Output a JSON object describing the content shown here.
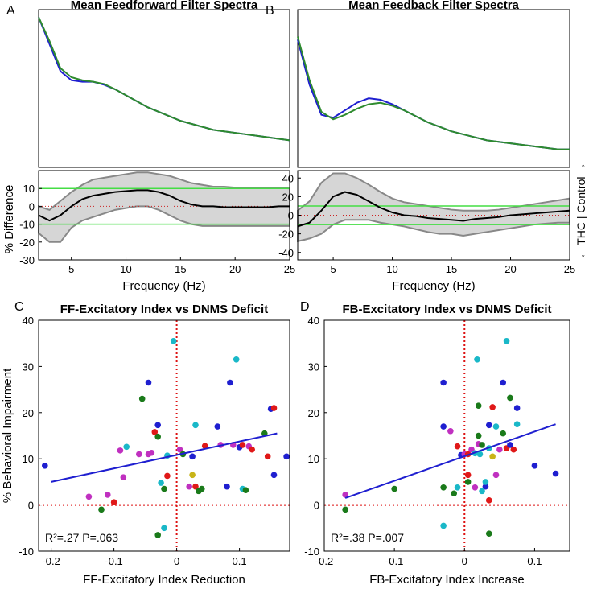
{
  "chart_data": [
    {
      "panel": "A",
      "type": "line",
      "title": "Mean Feedforward Filter Spectra",
      "series_colors": {
        "THC": "#2e8b2e",
        "Control": "#1f1fd0"
      },
      "top": {
        "x": [
          2,
          3,
          4,
          5,
          6,
          7,
          8,
          9,
          10,
          11,
          12,
          13,
          14,
          15,
          16,
          17,
          18,
          19,
          20,
          21,
          22,
          23,
          24,
          25
        ],
        "blue": [
          1.0,
          0.82,
          0.64,
          0.58,
          0.57,
          0.57,
          0.55,
          0.52,
          0.48,
          0.44,
          0.4,
          0.37,
          0.34,
          0.31,
          0.29,
          0.27,
          0.25,
          0.24,
          0.23,
          0.22,
          0.21,
          0.2,
          0.19,
          0.18
        ],
        "green": [
          1.0,
          0.84,
          0.66,
          0.6,
          0.58,
          0.57,
          0.555,
          0.52,
          0.48,
          0.44,
          0.4,
          0.37,
          0.34,
          0.31,
          0.29,
          0.27,
          0.25,
          0.24,
          0.23,
          0.22,
          0.21,
          0.2,
          0.19,
          0.18
        ]
      },
      "bottom": {
        "ylabel": "% Difference",
        "xlabel": "Frequency (Hz)",
        "xlim": [
          2,
          25
        ],
        "ylim": [
          -30,
          20
        ],
        "xticks": [
          "5",
          "10",
          "15",
          "20",
          "25"
        ],
        "yticks": [
          "-30",
          "-20",
          "-10",
          "0",
          "10"
        ],
        "threshold": 10,
        "x": [
          2,
          3,
          4,
          5,
          6,
          7,
          8,
          9,
          10,
          11,
          12,
          13,
          14,
          15,
          16,
          17,
          18,
          19,
          20,
          21,
          22,
          23,
          24,
          25
        ],
        "mean": [
          -5,
          -8,
          -5,
          0,
          4,
          6,
          7,
          8,
          8.5,
          9,
          9,
          8,
          6,
          3,
          1,
          0,
          0,
          -0.5,
          -0.5,
          -0.5,
          -0.5,
          -0.5,
          0,
          0
        ],
        "upper": [
          0,
          -2,
          3,
          8,
          12,
          15,
          16,
          17,
          18,
          19,
          19,
          18,
          17,
          15,
          13,
          12,
          11,
          11,
          10.5,
          10.5,
          10.5,
          10.5,
          10.5,
          10
        ],
        "lower": [
          -15,
          -20,
          -20,
          -12,
          -8,
          -6,
          -4,
          -2,
          -1,
          0,
          0,
          -2,
          -5,
          -8,
          -10,
          -11,
          -11,
          -11,
          -11,
          -11,
          -11,
          -11,
          -11,
          -11
        ]
      }
    },
    {
      "panel": "B",
      "type": "line",
      "title": "Mean Feedback Filter Spectra",
      "top": {
        "x": [
          2,
          3,
          4,
          5,
          6,
          7,
          8,
          9,
          10,
          11,
          12,
          13,
          14,
          15,
          16,
          17,
          18,
          19,
          20,
          21,
          22,
          23,
          24,
          25
        ],
        "blue": [
          0.85,
          0.55,
          0.35,
          0.33,
          0.38,
          0.43,
          0.46,
          0.45,
          0.42,
          0.38,
          0.34,
          0.3,
          0.27,
          0.24,
          0.22,
          0.2,
          0.18,
          0.17,
          0.16,
          0.15,
          0.14,
          0.13,
          0.12,
          0.12
        ],
        "green": [
          0.87,
          0.58,
          0.37,
          0.32,
          0.35,
          0.39,
          0.42,
          0.43,
          0.41,
          0.38,
          0.34,
          0.3,
          0.27,
          0.24,
          0.22,
          0.2,
          0.18,
          0.17,
          0.16,
          0.15,
          0.14,
          0.13,
          0.12,
          0.12
        ]
      },
      "bottom": {
        "xlabel": "Frequency (Hz)",
        "xlim": [
          2,
          25
        ],
        "ylim": [
          -48,
          48
        ],
        "xticks": [
          "5",
          "10",
          "15",
          "20",
          "25"
        ],
        "yticks": [
          "-40",
          "-20",
          "0",
          "20",
          "40"
        ],
        "threshold": 10,
        "x": [
          2,
          3,
          4,
          5,
          6,
          7,
          8,
          9,
          10,
          11,
          12,
          13,
          14,
          15,
          16,
          17,
          18,
          19,
          20,
          21,
          22,
          23,
          24,
          25
        ],
        "mean": [
          -12,
          -8,
          5,
          20,
          25,
          22,
          15,
          8,
          3,
          0,
          -1,
          -3,
          -4,
          -5,
          -6,
          -4,
          -3,
          -2,
          0,
          1,
          2,
          3,
          4,
          5
        ],
        "upper": [
          5,
          15,
          35,
          45,
          45,
          40,
          33,
          25,
          18,
          14,
          12,
          10,
          8,
          6,
          5,
          5,
          5,
          6,
          8,
          10,
          12,
          14,
          16,
          18
        ],
        "lower": [
          -28,
          -25,
          -20,
          -10,
          -5,
          -5,
          -5,
          -8,
          -10,
          -12,
          -15,
          -18,
          -20,
          -20,
          -22,
          -20,
          -18,
          -16,
          -14,
          -12,
          -10,
          -9,
          -8,
          -8
        ]
      },
      "side_label": "← THC  |  Control →"
    },
    {
      "panel": "C",
      "type": "scatter",
      "title": "FF-Excitatory Index vs DNMS Deficit",
      "xlabel": "FF-Excitatory Index Reduction",
      "ylabel": "% Behavioral Impairment",
      "xlim": [
        -0.22,
        0.18
      ],
      "ylim": [
        -10,
        40
      ],
      "xticks": [
        "-0.2",
        "-0.1",
        "0",
        "0.1"
      ],
      "yticks": [
        "-10",
        "0",
        "10",
        "20",
        "30",
        "40"
      ],
      "stats": "R²=.27  P=.063",
      "fit": {
        "x": [
          -0.2,
          0.16
        ],
        "y": [
          5,
          15.5
        ]
      },
      "points": [
        [
          -0.21,
          8.5,
          "#1f1fd0"
        ],
        [
          -0.14,
          1.8,
          "#c030c0"
        ],
        [
          -0.12,
          -1,
          "#1a7a1a"
        ],
        [
          -0.11,
          2.2,
          "#c030c0"
        ],
        [
          -0.1,
          0.6,
          "#e01818"
        ],
        [
          -0.09,
          11.8,
          "#c030c0"
        ],
        [
          -0.085,
          6,
          "#c030c0"
        ],
        [
          -0.08,
          12.6,
          "#1ab8c8"
        ],
        [
          -0.06,
          11,
          "#c030c0"
        ],
        [
          -0.055,
          23,
          "#1a7a1a"
        ],
        [
          -0.045,
          26.5,
          "#1f1fd0"
        ],
        [
          -0.045,
          11,
          "#c030c0"
        ],
        [
          -0.04,
          11.3,
          "#c030c0"
        ],
        [
          -0.035,
          15.8,
          "#e01818"
        ],
        [
          -0.03,
          14.8,
          "#1a7a1a"
        ],
        [
          -0.03,
          17.3,
          "#1f1fd0"
        ],
        [
          -0.025,
          4.8,
          "#1ab8c8"
        ],
        [
          -0.02,
          3.5,
          "#1a7a1a"
        ],
        [
          -0.015,
          6.3,
          "#e01818"
        ],
        [
          -0.015,
          10.7,
          "#1ab8c8"
        ],
        [
          -0.005,
          35.5,
          "#1ab8c8"
        ],
        [
          0.005,
          12,
          "#c030c0"
        ],
        [
          0.01,
          11,
          "#1a7a1a"
        ],
        [
          0.02,
          4,
          "#c030c0"
        ],
        [
          0.025,
          6.5,
          "#c8b418"
        ],
        [
          0.025,
          10.5,
          "#1f1fd0"
        ],
        [
          0.03,
          4,
          "#e01818"
        ],
        [
          0.03,
          17.3,
          "#1ab8c8"
        ],
        [
          0.035,
          3,
          "#1a7a1a"
        ],
        [
          0.04,
          3.5,
          "#1a7a1a"
        ],
        [
          0.045,
          12.8,
          "#e01818"
        ],
        [
          0.065,
          17,
          "#1f1fd0"
        ],
        [
          0.07,
          13,
          "#c030c0"
        ],
        [
          0.08,
          4,
          "#1f1fd0"
        ],
        [
          0.085,
          26.5,
          "#1f1fd0"
        ],
        [
          0.09,
          13,
          "#c030c0"
        ],
        [
          0.095,
          31.5,
          "#1ab8c8"
        ],
        [
          0.1,
          12.5,
          "#1f1fd0"
        ],
        [
          0.105,
          3.5,
          "#1ab8c8"
        ],
        [
          0.105,
          13,
          "#e01818"
        ],
        [
          0.11,
          3.2,
          "#1a7a1a"
        ],
        [
          0.115,
          12.7,
          "#c030c0"
        ],
        [
          0.12,
          12,
          "#e01818"
        ],
        [
          0.14,
          15.5,
          "#1a7a1a"
        ],
        [
          0.15,
          20.8,
          "#1f1fd0"
        ],
        [
          0.155,
          21,
          "#e01818"
        ],
        [
          0.145,
          10.5,
          "#e01818"
        ],
        [
          0.155,
          6.5,
          "#1f1fd0"
        ],
        [
          0.175,
          10.5,
          "#1f1fd0"
        ],
        [
          -0.03,
          -6.5,
          "#1a7a1a"
        ],
        [
          -0.02,
          -5,
          "#1ab8c8"
        ]
      ]
    },
    {
      "panel": "D",
      "type": "scatter",
      "title": "FB-Excitatory Index vs DNMS Deficit",
      "xlabel": "FB-Excitatory Index Increase",
      "xlim": [
        -0.2,
        0.15
      ],
      "ylim": [
        -10,
        40
      ],
      "xticks": [
        "-0.2",
        "-0.1",
        "0",
        "0.1"
      ],
      "yticks": [
        "-10",
        "0",
        "10",
        "20",
        "30",
        "40"
      ],
      "stats": "R²=.38  P=.007",
      "fit": {
        "x": [
          -0.17,
          0.13
        ],
        "y": [
          1.5,
          17.5
        ]
      },
      "points": [
        [
          -0.17,
          2.2,
          "#c030c0"
        ],
        [
          -0.17,
          -1,
          "#1a7a1a"
        ],
        [
          -0.1,
          3.5,
          "#1a7a1a"
        ],
        [
          -0.03,
          26.5,
          "#1f1fd0"
        ],
        [
          -0.03,
          17,
          "#1f1fd0"
        ],
        [
          -0.03,
          3.8,
          "#1a7a1a"
        ],
        [
          -0.03,
          -4.5,
          "#1ab8c8"
        ],
        [
          -0.02,
          16,
          "#c030c0"
        ],
        [
          -0.015,
          2.5,
          "#1a7a1a"
        ],
        [
          -0.01,
          3.8,
          "#1ab8c8"
        ],
        [
          -0.01,
          12.7,
          "#e01818"
        ],
        [
          -0.005,
          10.8,
          "#1f1fd0"
        ],
        [
          0,
          11,
          "#c030c0"
        ],
        [
          0.005,
          11,
          "#e01818"
        ],
        [
          0.005,
          5,
          "#1a7a1a"
        ],
        [
          0.005,
          6.5,
          "#e01818"
        ],
        [
          0.01,
          12,
          "#c030c0"
        ],
        [
          0.015,
          11.2,
          "#1ab8c8"
        ],
        [
          0.015,
          3.8,
          "#c030c0"
        ],
        [
          0.018,
          31.5,
          "#1ab8c8"
        ],
        [
          0.02,
          13.2,
          "#c030c0"
        ],
        [
          0.02,
          21.5,
          "#1a7a1a"
        ],
        [
          0.02,
          15,
          "#1a7a1a"
        ],
        [
          0.022,
          11,
          "#1ab8c8"
        ],
        [
          0.025,
          3,
          "#1ab8c8"
        ],
        [
          0.025,
          13,
          "#1a7a1a"
        ],
        [
          0.03,
          4,
          "#1f1fd0"
        ],
        [
          0.03,
          5,
          "#1ab8c8"
        ],
        [
          0.035,
          1,
          "#e01818"
        ],
        [
          0.035,
          17.3,
          "#1f1fd0"
        ],
        [
          0.035,
          -6.2,
          "#1a7a1a"
        ],
        [
          0.035,
          12.3,
          "#1ab8c8"
        ],
        [
          0.04,
          10.5,
          "#c8b418"
        ],
        [
          0.04,
          21.2,
          "#e01818"
        ],
        [
          0.045,
          17,
          "#1ab8c8"
        ],
        [
          0.05,
          12,
          "#c030c0"
        ],
        [
          0.055,
          26.5,
          "#1f1fd0"
        ],
        [
          0.055,
          15.5,
          "#1a7a1a"
        ],
        [
          0.06,
          35.5,
          "#1ab8c8"
        ],
        [
          0.06,
          12.3,
          "#e01818"
        ],
        [
          0.065,
          23.2,
          "#1a7a1a"
        ],
        [
          0.065,
          13,
          "#1f1fd0"
        ],
        [
          0.07,
          12,
          "#e01818"
        ],
        [
          0.075,
          17.5,
          "#1ab8c8"
        ],
        [
          0.075,
          21,
          "#1f1fd0"
        ],
        [
          0.1,
          8.5,
          "#1f1fd0"
        ],
        [
          0.13,
          6.8,
          "#1f1fd0"
        ],
        [
          0.045,
          6.5,
          "#c030c0"
        ]
      ]
    }
  ]
}
